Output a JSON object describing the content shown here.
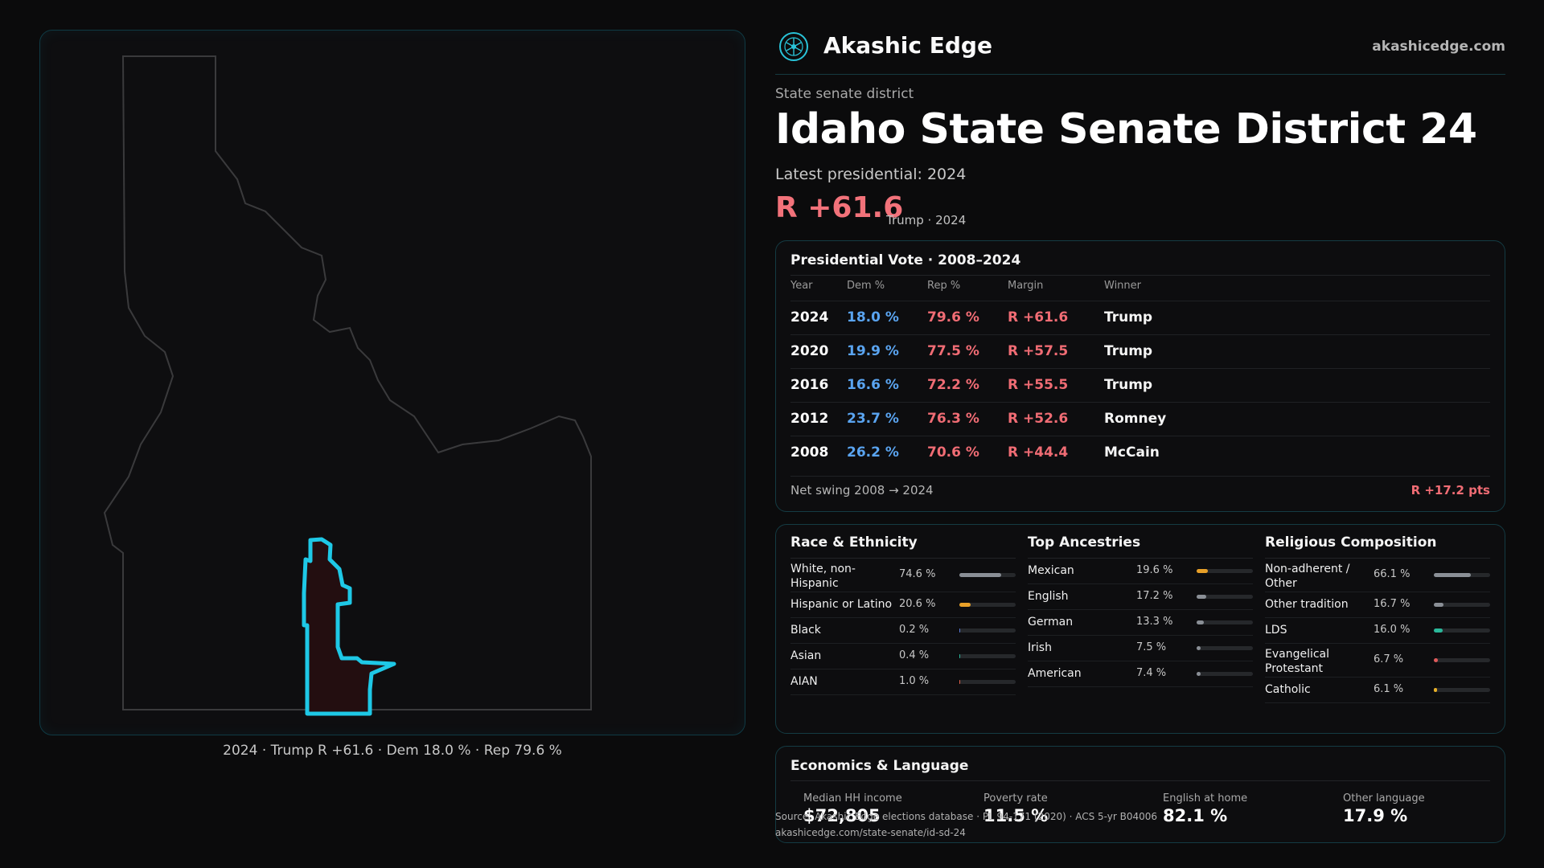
{
  "brand": {
    "name": "Akashic Edge",
    "url": "akashicedge.com",
    "logo_icon": "akashic-logo-icon"
  },
  "header": {
    "kicker": "State senate district",
    "title": "Idaho State Senate District 24",
    "latest": "Latest presidential: 2024",
    "margin": "R +61.6",
    "margin_sub": "Trump · 2024"
  },
  "map": {
    "caption": "2024 · Trump R +61.6 · Dem 18.0 % · Rep 79.6 %",
    "state_outline_color": "#3a3a3c",
    "district_color": "#1ec8e6",
    "district_fill": "#230e10"
  },
  "vote_table": {
    "title": "Presidential Vote · 2008–2024",
    "headers": {
      "year": "Year",
      "dem": "Dem %",
      "rep": "Rep %",
      "margin": "Margin",
      "winner": "Winner"
    },
    "rows": [
      {
        "year": "2024",
        "dem": "18.0 %",
        "rep": "79.6 %",
        "margin": "R +61.6",
        "winner": "Trump"
      },
      {
        "year": "2020",
        "dem": "19.9 %",
        "rep": "77.5 %",
        "margin": "R +57.5",
        "winner": "Trump"
      },
      {
        "year": "2016",
        "dem": "16.6 %",
        "rep": "72.2 %",
        "margin": "R +55.5",
        "winner": "Trump"
      },
      {
        "year": "2012",
        "dem": "23.7 %",
        "rep": "76.3 %",
        "margin": "R +52.6",
        "winner": "Romney"
      },
      {
        "year": "2008",
        "dem": "26.2 %",
        "rep": "70.6 %",
        "margin": "R +44.4",
        "winner": "McCain"
      }
    ],
    "swing_label": "Net swing 2008 → 2024",
    "swing_value": "R +17.2 pts"
  },
  "demographics": {
    "race": {
      "title": "Race & Ethnicity",
      "items": [
        {
          "label": "White, non-Hispanic",
          "pct": "74.6 %",
          "value": 74.6,
          "color": "#8a8f96"
        },
        {
          "label": "Hispanic or Latino",
          "pct": "20.6 %",
          "value": 20.6,
          "color": "#e8a028"
        },
        {
          "label": "Black",
          "pct": "0.2 %",
          "value": 0.2,
          "color": "#5a7ad8"
        },
        {
          "label": "Asian",
          "pct": "0.4 %",
          "value": 0.4,
          "color": "#2ab89a"
        },
        {
          "label": "AIAN",
          "pct": "1.0 %",
          "value": 1.0,
          "color": "#e0604a"
        }
      ]
    },
    "ancestry": {
      "title": "Top Ancestries",
      "items": [
        {
          "label": "Mexican",
          "pct": "19.6 %",
          "value": 19.6,
          "color": "#e8a028"
        },
        {
          "label": "English",
          "pct": "17.2 %",
          "value": 17.2,
          "color": "#8a8f96"
        },
        {
          "label": "German",
          "pct": "13.3 %",
          "value": 13.3,
          "color": "#8a8f96"
        },
        {
          "label": "Irish",
          "pct": "7.5 %",
          "value": 7.5,
          "color": "#8a8f96"
        },
        {
          "label": "American",
          "pct": "7.4 %",
          "value": 7.4,
          "color": "#8a8f96"
        }
      ]
    },
    "religion": {
      "title": "Religious Composition",
      "items": [
        {
          "label": "Non-adherent / Other",
          "pct": "66.1 %",
          "value": 66.1,
          "color": "#8a8f96"
        },
        {
          "label": "Other tradition",
          "pct": "16.7 %",
          "value": 16.7,
          "color": "#8a8f96"
        },
        {
          "label": "LDS",
          "pct": "16.0 %",
          "value": 16.0,
          "color": "#2ab89a"
        },
        {
          "label": "Evangelical Protestant",
          "pct": "6.7 %",
          "value": 6.7,
          "color": "#e05a5a"
        },
        {
          "label": "Catholic",
          "pct": "6.1 %",
          "value": 6.1,
          "color": "#e8b028"
        }
      ]
    }
  },
  "economics": {
    "title": "Economics & Language",
    "items": [
      {
        "label": "Median HH income",
        "value": "$72,805"
      },
      {
        "label": "Poverty rate",
        "value": "11.5 %"
      },
      {
        "label": "English at home",
        "value": "82.1 %"
      },
      {
        "label": "Other language",
        "value": "17.9 %"
      }
    ]
  },
  "source": {
    "line1": "Source: Akashic Edge elections database · PL 94-171 (2020) · ACS 5-yr B04006",
    "line2": "akashicedge.com/state-senate/id-sd-24"
  }
}
